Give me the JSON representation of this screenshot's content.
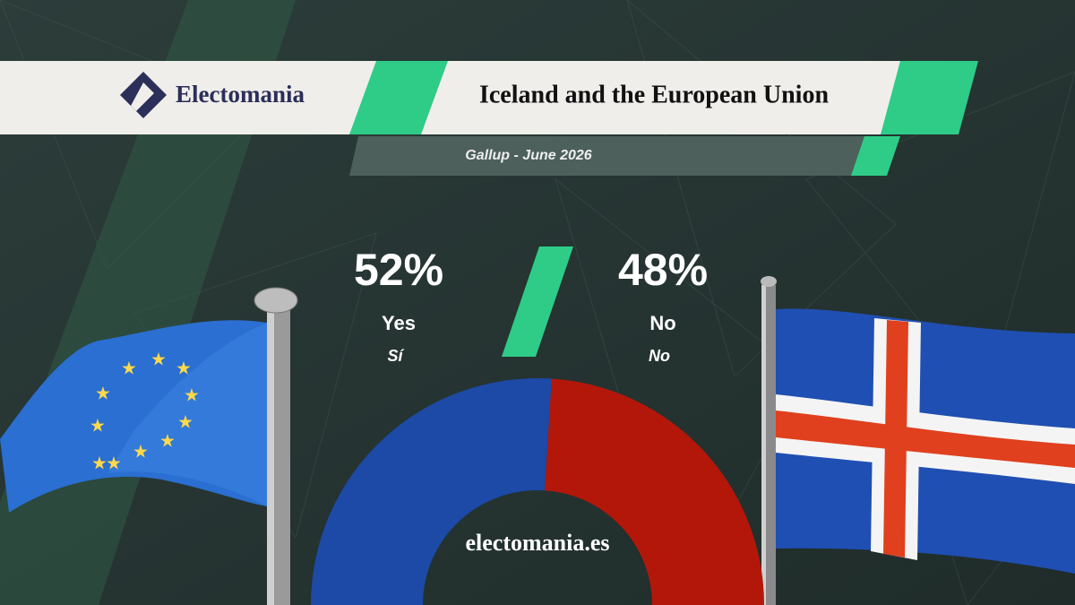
{
  "brand": "Electomania",
  "chart_data": {
    "type": "pie",
    "title": "Iceland and the European Union",
    "subtitle": "Gallup - June 2026",
    "categories": [
      "Yes",
      "No"
    ],
    "category_translations": [
      "Sí",
      "No"
    ],
    "values": [
      52,
      48
    ],
    "value_labels": [
      "52%",
      "48%"
    ],
    "colors": [
      "#1c4aa6",
      "#b3170a"
    ]
  },
  "footer": "electomania.es"
}
